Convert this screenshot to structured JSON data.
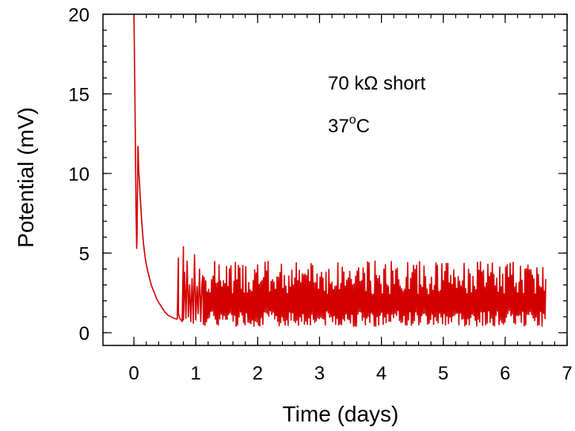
{
  "chart_data": {
    "type": "line",
    "xlabel": "Time (days)",
    "ylabel": "Potential (mV)",
    "xlim": [
      -0.5,
      7
    ],
    "ylim": [
      -0.8,
      20
    ],
    "x_ticks": [
      0,
      1,
      2,
      3,
      4,
      5,
      6,
      7
    ],
    "y_ticks": [
      0,
      5,
      10,
      15,
      20
    ],
    "x_minor_step": 0.2,
    "y_minor_step": 1,
    "grid": false,
    "line_color": "#d40000",
    "annotations": {
      "line1": "70 kΩ short",
      "line2_base": "37",
      "line2_sup": "o",
      "line2_rest": "C"
    },
    "series": [
      {
        "x": [
          0.0,
          0.005,
          0.01,
          0.015,
          0.02,
          0.025,
          0.03,
          0.035,
          0.04,
          0.045,
          0.05,
          0.055,
          0.06,
          0.065,
          0.07,
          0.075,
          0.08,
          0.085,
          0.09,
          0.095,
          0.1,
          0.11,
          0.12,
          0.13,
          0.14,
          0.15,
          0.16,
          0.18,
          0.2,
          0.22,
          0.24,
          0.26,
          0.28,
          0.3,
          0.33,
          0.36,
          0.4,
          0.45,
          0.5,
          0.55,
          0.6,
          0.65,
          0.7,
          0.72,
          0.72,
          0.74,
          0.76,
          0.78,
          0.8,
          0.8,
          0.82,
          0.84,
          0.86,
          0.88,
          0.9,
          0.92,
          0.94,
          0.96,
          0.98,
          1.0,
          1.02,
          1.04,
          1.06,
          1.08,
          1.1
        ],
        "y": [
          20.0,
          18.5,
          17.0,
          15.5,
          13.5,
          11.5,
          9.5,
          7.5,
          6.5,
          5.3,
          6.0,
          8.0,
          10.0,
          11.7,
          11.5,
          10.5,
          10.0,
          9.8,
          9.5,
          9.0,
          8.6,
          8.0,
          7.4,
          6.8,
          6.3,
          5.8,
          5.4,
          4.8,
          4.3,
          3.9,
          3.6,
          3.3,
          3.0,
          2.8,
          2.5,
          2.2,
          1.9,
          1.6,
          1.3,
          1.1,
          1.0,
          0.9,
          0.85,
          4.7,
          1.2,
          0.9,
          0.8,
          0.7,
          5.4,
          0.8,
          3.8,
          0.9,
          4.5,
          1.0,
          3.0,
          0.7,
          3.4,
          0.6,
          4.9,
          0.8,
          2.9,
          1.2,
          4.0,
          0.7,
          3.1
        ]
      }
    ]
  }
}
